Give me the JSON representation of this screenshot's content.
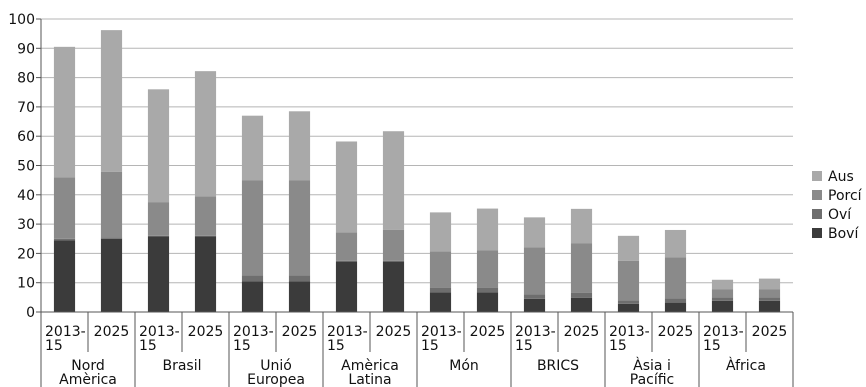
{
  "chart_data": {
    "type": "bar",
    "stacked": true,
    "ylim": [
      0,
      100
    ],
    "yticks": [
      0,
      10,
      20,
      30,
      40,
      50,
      60,
      70,
      80,
      90,
      100
    ],
    "grid": true,
    "legend_position": "right",
    "groups": [
      {
        "label": "Nord Amèrica",
        "periods": [
          "2013-15",
          "2025"
        ]
      },
      {
        "label": "Brasil",
        "periods": [
          "2013-15",
          "2025"
        ]
      },
      {
        "label": "Unió Europea",
        "periods": [
          "2013-15",
          "2025"
        ]
      },
      {
        "label": "Amèrica Latina",
        "periods": [
          "2013-15",
          "2025"
        ]
      },
      {
        "label": "Món",
        "periods": [
          "2013-15",
          "2025"
        ]
      },
      {
        "label": "BRICS",
        "periods": [
          "2013-15",
          "2025"
        ]
      },
      {
        "label": "Àsia i Pacífic",
        "periods": [
          "2013-15",
          "2025"
        ]
      },
      {
        "label": "Àfrica",
        "periods": [
          "2013-15",
          "2025"
        ]
      }
    ],
    "series": [
      {
        "name": "Boví",
        "color": "#3b3b3b",
        "values": [
          24.5,
          25.0,
          25.8,
          25.8,
          10.5,
          10.5,
          17.2,
          17.2,
          6.7,
          6.7,
          4.5,
          4.8,
          2.8,
          3.2,
          3.8,
          3.8
        ]
      },
      {
        "name": "Oví",
        "color": "#6e6e6e",
        "values": [
          0.5,
          0.5,
          0.2,
          0.2,
          2.0,
          2.0,
          0.3,
          0.3,
          1.5,
          1.5,
          1.5,
          1.7,
          1.2,
          1.5,
          1.2,
          1.2
        ]
      },
      {
        "name": "Porcí",
        "color": "#8a8a8a",
        "values": [
          21.0,
          22.3,
          11.5,
          13.5,
          32.5,
          32.5,
          9.7,
          10.6,
          12.5,
          12.8,
          16.0,
          17.0,
          13.5,
          14.0,
          2.8,
          2.8
        ]
      },
      {
        "name": "Aus",
        "color": "#a9a9a9",
        "values": [
          44.5,
          48.4,
          38.5,
          42.7,
          22.0,
          23.5,
          31.0,
          33.6,
          13.3,
          14.3,
          10.3,
          11.7,
          8.5,
          9.3,
          3.2,
          3.6
        ]
      }
    ],
    "legend_order": [
      "Aus",
      "Porcí",
      "Oví",
      "Boví"
    ]
  }
}
